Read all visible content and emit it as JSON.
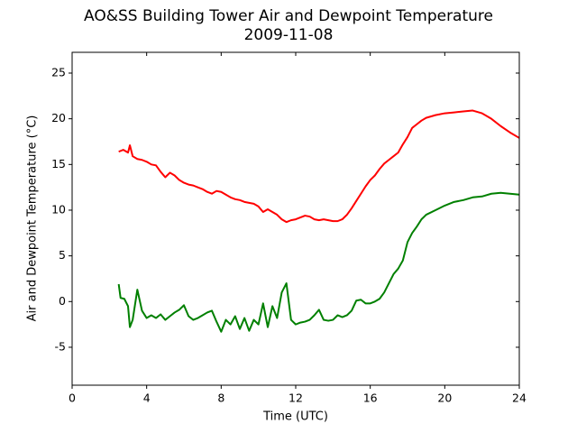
{
  "chart_data": {
    "type": "line",
    "title": "AO&SS Building Tower Air and Dewpoint Temperature",
    "subtitle": "2009-11-08",
    "x_label": "Time (UTC)",
    "y_label": "Air and Dewpoint Temperature (°C)",
    "xlim": [
      0,
      24
    ],
    "xticks": [
      0,
      4,
      8,
      12,
      16,
      20,
      24
    ],
    "ylim": [
      -9.15,
      27.27
    ],
    "yticks": [
      -5,
      0,
      5,
      10,
      15,
      20,
      25
    ],
    "series": [
      {
        "color": "#ff0000",
        "x": [
          2.5,
          2.75,
          3.0,
          3.1,
          3.25,
          3.5,
          3.75,
          4.0,
          4.25,
          4.5,
          4.75,
          5.0,
          5.25,
          5.5,
          5.75,
          6.0,
          6.25,
          6.5,
          6.75,
          7.0,
          7.25,
          7.5,
          7.75,
          8.0,
          8.25,
          8.5,
          8.75,
          9.0,
          9.25,
          9.5,
          9.75,
          10.0,
          10.25,
          10.5,
          10.75,
          11.0,
          11.25,
          11.5,
          11.75,
          12.0,
          12.25,
          12.5,
          12.75,
          13.0,
          13.25,
          13.5,
          13.75,
          14.0,
          14.25,
          14.5,
          14.75,
          15.0,
          15.25,
          15.5,
          15.75,
          16.0,
          16.25,
          16.5,
          16.75,
          17.0,
          17.25,
          17.5,
          17.75,
          18.0,
          18.25,
          18.5,
          18.75,
          19.0,
          19.5,
          20.0,
          20.5,
          21.0,
          21.5,
          22.0,
          22.5,
          23.0,
          23.5,
          24.0
        ],
        "values": [
          16.4,
          16.6,
          16.3,
          17.1,
          15.9,
          15.6,
          15.5,
          15.3,
          15.0,
          14.9,
          14.2,
          13.6,
          14.1,
          13.8,
          13.3,
          13.0,
          12.8,
          12.7,
          12.5,
          12.3,
          12.0,
          11.8,
          12.1,
          12.0,
          11.7,
          11.4,
          11.2,
          11.1,
          10.9,
          10.8,
          10.7,
          10.4,
          9.8,
          10.1,
          9.8,
          9.5,
          9.0,
          8.7,
          8.9,
          9.0,
          9.2,
          9.4,
          9.3,
          9.0,
          8.9,
          9.0,
          8.9,
          8.8,
          8.8,
          9.0,
          9.5,
          10.2,
          11.0,
          11.8,
          12.6,
          13.3,
          13.8,
          14.5,
          15.1,
          15.5,
          15.9,
          16.3,
          17.2,
          18.0,
          19.0,
          19.4,
          19.8,
          20.1,
          20.4,
          20.6,
          20.7,
          20.8,
          20.9,
          20.6,
          20.0,
          19.2,
          18.5,
          17.9
        ]
      },
      {
        "color": "#008000",
        "x": [
          2.5,
          2.6,
          2.8,
          3.0,
          3.1,
          3.25,
          3.5,
          3.75,
          4.0,
          4.25,
          4.5,
          4.75,
          5.0,
          5.25,
          5.5,
          5.75,
          6.0,
          6.25,
          6.5,
          6.75,
          7.0,
          7.25,
          7.5,
          7.75,
          8.0,
          8.25,
          8.5,
          8.75,
          9.0,
          9.25,
          9.5,
          9.75,
          10.0,
          10.25,
          10.5,
          10.75,
          11.0,
          11.25,
          11.5,
          11.75,
          12.0,
          12.25,
          12.5,
          12.75,
          13.0,
          13.25,
          13.5,
          13.75,
          14.0,
          14.25,
          14.5,
          14.75,
          15.0,
          15.25,
          15.5,
          15.75,
          16.0,
          16.25,
          16.5,
          16.75,
          17.0,
          17.25,
          17.5,
          17.75,
          18.0,
          18.25,
          18.5,
          18.75,
          19.0,
          19.5,
          20.0,
          20.5,
          21.0,
          21.5,
          22.0,
          22.5,
          23.0,
          23.5,
          24.0
        ],
        "values": [
          1.9,
          0.4,
          0.3,
          -0.5,
          -2.8,
          -2.0,
          1.3,
          -1.0,
          -1.8,
          -1.5,
          -1.8,
          -1.4,
          -2.0,
          -1.6,
          -1.2,
          -0.9,
          -0.4,
          -1.6,
          -2.0,
          -1.8,
          -1.5,
          -1.2,
          -1.0,
          -2.2,
          -3.3,
          -2.0,
          -2.5,
          -1.6,
          -3.0,
          -1.8,
          -3.2,
          -2.0,
          -2.5,
          -0.2,
          -2.8,
          -0.5,
          -1.8,
          1.0,
          2.0,
          -2.0,
          -2.5,
          -2.3,
          -2.2,
          -2.0,
          -1.5,
          -0.9,
          -2.0,
          -2.1,
          -2.0,
          -1.5,
          -1.7,
          -1.5,
          -1.0,
          0.1,
          0.2,
          -0.2,
          -0.2,
          0.0,
          0.3,
          1.0,
          2.0,
          3.0,
          3.6,
          4.5,
          6.5,
          7.5,
          8.2,
          9.0,
          9.5,
          10.0,
          10.5,
          10.9,
          11.1,
          11.4,
          11.5,
          11.8,
          11.9,
          11.8,
          11.7
        ]
      }
    ]
  }
}
